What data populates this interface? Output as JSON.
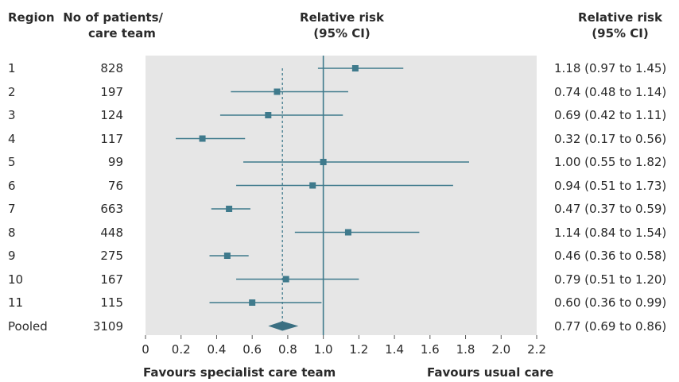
{
  "headers": {
    "region": "Region",
    "patients_line1": "No of patients/",
    "patients_line2": "care team",
    "rr_plot_line1": "Relative risk",
    "rr_plot_line2": "(95% CI)",
    "rr_text_line1": "Relative risk",
    "rr_text_line2": "(95% CI)"
  },
  "footer": {
    "left": "Favours specialist care team",
    "right": "Favours usual care"
  },
  "colors": {
    "marker": "#3f7a8c",
    "panel": "#e6e6e6",
    "pooled": "#3a6f82"
  },
  "chart_data": {
    "type": "forest",
    "x_ticks": [
      "0",
      "0.2",
      "0.4",
      "0.6",
      "0.8",
      "1.0",
      "1.2",
      "1.4",
      "1.6",
      "1.8",
      "2.0",
      "2.2"
    ],
    "xlim": [
      0,
      2.2
    ],
    "null_line": 1.0,
    "pooled_line": 0.77,
    "rows": [
      {
        "region": "1",
        "n": "828",
        "rr": 1.18,
        "lo": 0.97,
        "hi": 1.45,
        "label": "1.18 (0.97 to 1.45)"
      },
      {
        "region": "2",
        "n": "197",
        "rr": 0.74,
        "lo": 0.48,
        "hi": 1.14,
        "label": "0.74 (0.48 to 1.14)"
      },
      {
        "region": "3",
        "n": "124",
        "rr": 0.69,
        "lo": 0.42,
        "hi": 1.11,
        "label": "0.69 (0.42 to 1.11)"
      },
      {
        "region": "4",
        "n": "117",
        "rr": 0.32,
        "lo": 0.17,
        "hi": 0.56,
        "label": "0.32 (0.17 to 0.56)"
      },
      {
        "region": "5",
        "n": "99",
        "rr": 1.0,
        "lo": 0.55,
        "hi": 1.82,
        "label": "1.00 (0.55 to 1.82)"
      },
      {
        "region": "6",
        "n": "76",
        "rr": 0.94,
        "lo": 0.51,
        "hi": 1.73,
        "label": "0.94 (0.51 to 1.73)"
      },
      {
        "region": "7",
        "n": "663",
        "rr": 0.47,
        "lo": 0.37,
        "hi": 0.59,
        "label": "0.47 (0.37 to 0.59)"
      },
      {
        "region": "8",
        "n": "448",
        "rr": 1.14,
        "lo": 0.84,
        "hi": 1.54,
        "label": "1.14 (0.84 to 1.54)"
      },
      {
        "region": "9",
        "n": "275",
        "rr": 0.46,
        "lo": 0.36,
        "hi": 0.58,
        "label": "0.46 (0.36 to 0.58)"
      },
      {
        "region": "10",
        "n": "167",
        "rr": 0.79,
        "lo": 0.51,
        "hi": 1.2,
        "label": "0.79 (0.51 to 1.20)"
      },
      {
        "region": "11",
        "n": "115",
        "rr": 0.6,
        "lo": 0.36,
        "hi": 0.99,
        "label": "0.60 (0.36 to 0.99)"
      }
    ],
    "pooled": {
      "region": "Pooled",
      "n": "3109",
      "rr": 0.77,
      "lo": 0.69,
      "hi": 0.86,
      "label": "0.77 (0.69 to 0.86)"
    }
  }
}
